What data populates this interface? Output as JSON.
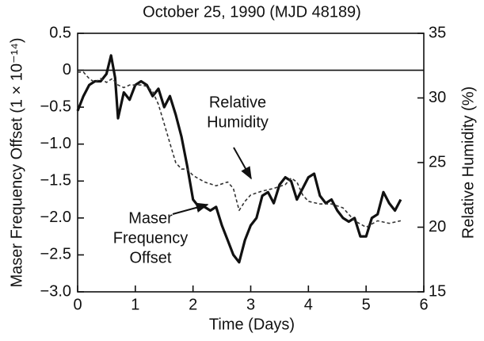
{
  "chart_data": {
    "type": "line",
    "title": "October 25, 1990 (MJD 48189)",
    "x_label": "Time (Days)",
    "y_label": "Maser Frequency Offset (1 × 10⁻¹⁴)",
    "y2_label": "Relative Humidity (%)",
    "xlim": [
      0,
      6
    ],
    "xticks": [
      0,
      1,
      2,
      3,
      4,
      5,
      6
    ],
    "ylim": [
      -3.0,
      0.5
    ],
    "yticks": [
      {
        "value": -3.0,
        "label": "−3.0"
      },
      {
        "value": -2.5,
        "label": "−2.5"
      },
      {
        "value": -2.0,
        "label": "−2.0"
      },
      {
        "value": -1.5,
        "label": "−1.5"
      },
      {
        "value": -1.0,
        "label": "−1.0"
      },
      {
        "value": -0.5,
        "label": "−0.5"
      },
      0,
      0.5
    ],
    "y2lim": [
      15,
      35
    ],
    "y2ticks": [
      15,
      20,
      25,
      30,
      35
    ],
    "zero_line": true,
    "series": [
      {
        "name": "Maser Frequency Offset",
        "color": "#111111",
        "style": "solid",
        "axis": "y",
        "x": [
          0,
          0.1,
          0.2,
          0.3,
          0.4,
          0.5,
          0.58,
          0.65,
          0.7,
          0.8,
          0.9,
          1.0,
          1.1,
          1.2,
          1.3,
          1.4,
          1.5,
          1.6,
          1.7,
          1.8,
          1.9,
          2.0,
          2.1,
          2.2,
          2.3,
          2.4,
          2.5,
          2.6,
          2.7,
          2.8,
          2.9,
          3.0,
          3.1,
          3.2,
          3.3,
          3.4,
          3.5,
          3.6,
          3.7,
          3.8,
          3.9,
          4.0,
          4.1,
          4.2,
          4.3,
          4.4,
          4.5,
          4.6,
          4.7,
          4.8,
          4.9,
          5.0,
          5.1,
          5.2,
          5.3,
          5.4,
          5.5,
          5.6
        ],
        "values": [
          -0.55,
          -0.35,
          -0.2,
          -0.15,
          -0.15,
          -0.05,
          0.2,
          -0.1,
          -0.65,
          -0.3,
          -0.4,
          -0.2,
          -0.15,
          -0.2,
          -0.35,
          -0.25,
          -0.5,
          -0.35,
          -0.6,
          -0.9,
          -1.3,
          -1.75,
          -1.85,
          -1.85,
          -1.9,
          -1.85,
          -2.1,
          -2.3,
          -2.5,
          -2.6,
          -2.3,
          -2.1,
          -2.0,
          -1.7,
          -1.65,
          -1.8,
          -1.55,
          -1.45,
          -1.5,
          -1.75,
          -1.6,
          -1.45,
          -1.4,
          -1.7,
          -1.8,
          -1.75,
          -1.9,
          -2.0,
          -2.05,
          -2.0,
          -2.25,
          -2.25,
          -2.0,
          -1.95,
          -1.65,
          -1.8,
          -1.9,
          -1.75
        ]
      },
      {
        "name": "Relative Humidity",
        "color": "#333333",
        "style": "dashed",
        "axis": "y2",
        "x": [
          0,
          0.1,
          0.2,
          0.3,
          0.4,
          0.5,
          0.6,
          0.7,
          0.8,
          0.9,
          1.0,
          1.1,
          1.2,
          1.3,
          1.4,
          1.5,
          1.6,
          1.7,
          1.8,
          1.9,
          2.0,
          2.2,
          2.4,
          2.6,
          2.7,
          2.8,
          2.9,
          3.0,
          3.2,
          3.4,
          3.6,
          3.7,
          3.8,
          3.9,
          4.0,
          4.2,
          4.4,
          4.6,
          4.8,
          5.0,
          5.2,
          5.4,
          5.6
        ],
        "values": [
          32,
          32,
          31.5,
          31.2,
          31.5,
          31.2,
          31.5,
          31.0,
          30.8,
          31.0,
          31.0,
          31.0,
          30.9,
          30.5,
          29.5,
          28.0,
          26.5,
          25.0,
          24.5,
          24.5,
          24.0,
          23.5,
          23.2,
          23.5,
          23.0,
          21.3,
          22.0,
          22.5,
          22.8,
          23.0,
          23.3,
          23.8,
          23.5,
          22.5,
          22.0,
          21.8,
          21.8,
          21.5,
          20.5,
          20.0,
          20.5,
          20.3,
          20.5
        ]
      }
    ],
    "annotations": [
      {
        "lines": [
          "Relative",
          "Humidity"
        ]
      },
      {
        "lines": [
          "Maser",
          "Frequency",
          "Offset"
        ]
      }
    ]
  }
}
